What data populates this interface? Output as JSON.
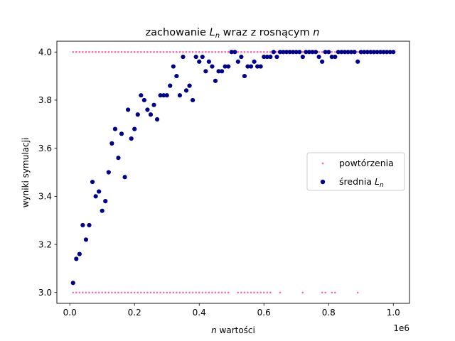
{
  "chart_data": {
    "type": "scatter",
    "title": "zachowanie L_n wraz z rosnącym n",
    "title_parts": {
      "pre": "zachowanie ",
      "var": "L",
      "sub": "n",
      "mid": " wraz z rosnącym ",
      "var2": "n"
    },
    "xlabel": "n wartości",
    "xlabel_parts": {
      "var": "n",
      "rest": " wartości"
    },
    "ylabel": "wyniki symulacji",
    "x_scale_label": "1e6",
    "xlim": [
      -40000,
      1050000
    ],
    "ylim": [
      2.955,
      4.045
    ],
    "x_ticks": [
      0,
      200000,
      400000,
      600000,
      800000,
      1000000
    ],
    "x_tick_labels": [
      "0.0",
      "0.2",
      "0.4",
      "0.6",
      "0.8",
      "1.0"
    ],
    "y_ticks": [
      3.0,
      3.2,
      3.4,
      3.6,
      3.8,
      4.0
    ],
    "y_tick_labels": [
      "3.0",
      "3.2",
      "3.4",
      "3.6",
      "3.8",
      "4.0"
    ],
    "grid": false,
    "legend_position": "center-right",
    "series": [
      {
        "name": "powtórzenia",
        "color": "#ff69b4",
        "marker": "small-dot",
        "points_top": {
          "y": 4.0,
          "x": [
            10000,
            20000,
            30000,
            40000,
            50000,
            60000,
            70000,
            80000,
            90000,
            100000,
            110000,
            120000,
            130000,
            140000,
            150000,
            160000,
            170000,
            180000,
            190000,
            200000,
            210000,
            220000,
            230000,
            240000,
            250000,
            260000,
            270000,
            280000,
            290000,
            300000,
            310000,
            320000,
            330000,
            340000,
            350000,
            360000,
            370000,
            380000,
            390000,
            400000,
            410000,
            420000,
            430000,
            440000,
            450000,
            460000,
            470000,
            480000,
            490000,
            500000,
            510000,
            520000,
            530000,
            540000,
            550000,
            560000,
            570000,
            580000,
            590000,
            600000,
            610000,
            620000,
            630000,
            640000,
            650000,
            660000,
            670000,
            680000,
            690000,
            700000,
            710000,
            720000,
            730000,
            740000,
            750000,
            760000,
            770000,
            780000,
            790000,
            800000,
            810000,
            820000,
            830000,
            840000,
            850000,
            860000,
            870000,
            880000,
            890000,
            900000,
            910000,
            920000,
            930000,
            940000,
            950000,
            960000,
            970000,
            980000,
            990000,
            1000000
          ]
        },
        "points_bottom": {
          "y": 3.0,
          "x": [
            10000,
            20000,
            30000,
            40000,
            50000,
            60000,
            70000,
            80000,
            90000,
            100000,
            110000,
            120000,
            130000,
            140000,
            150000,
            160000,
            170000,
            180000,
            190000,
            200000,
            210000,
            220000,
            230000,
            240000,
            250000,
            260000,
            270000,
            280000,
            290000,
            300000,
            310000,
            320000,
            330000,
            340000,
            350000,
            360000,
            370000,
            380000,
            390000,
            400000,
            410000,
            420000,
            430000,
            440000,
            450000,
            460000,
            470000,
            480000,
            490000,
            520000,
            530000,
            540000,
            550000,
            560000,
            570000,
            580000,
            590000,
            600000,
            610000,
            620000,
            650000,
            720000,
            780000,
            790000,
            810000,
            820000,
            890000
          ]
        }
      },
      {
        "name": "średnia L_n",
        "name_parts": {
          "pre": "średnia ",
          "var": "L",
          "sub": "n"
        },
        "color": "#00008b",
        "marker": "dot",
        "x": [
          10000,
          20000,
          30000,
          40000,
          50000,
          60000,
          70000,
          80000,
          90000,
          100000,
          110000,
          120000,
          130000,
          140000,
          150000,
          160000,
          170000,
          180000,
          190000,
          200000,
          210000,
          220000,
          230000,
          240000,
          250000,
          260000,
          270000,
          280000,
          290000,
          300000,
          310000,
          320000,
          330000,
          340000,
          350000,
          360000,
          370000,
          380000,
          390000,
          400000,
          410000,
          420000,
          430000,
          440000,
          450000,
          460000,
          470000,
          480000,
          490000,
          500000,
          510000,
          520000,
          530000,
          540000,
          550000,
          560000,
          570000,
          580000,
          590000,
          600000,
          610000,
          620000,
          630000,
          640000,
          650000,
          660000,
          670000,
          680000,
          690000,
          700000,
          710000,
          720000,
          730000,
          740000,
          750000,
          760000,
          770000,
          780000,
          790000,
          800000,
          810000,
          820000,
          830000,
          840000,
          850000,
          860000,
          870000,
          880000,
          890000,
          900000,
          910000,
          920000,
          930000,
          940000,
          950000,
          960000,
          970000,
          980000,
          990000,
          1000000
        ],
        "y": [
          3.04,
          3.14,
          3.16,
          3.28,
          3.22,
          3.28,
          3.46,
          3.4,
          3.42,
          3.34,
          3.38,
          3.5,
          3.62,
          3.68,
          3.56,
          3.66,
          3.48,
          3.76,
          3.64,
          3.68,
          3.74,
          3.82,
          3.8,
          3.76,
          3.74,
          3.78,
          3.72,
          3.82,
          3.82,
          3.82,
          3.86,
          3.94,
          3.9,
          3.82,
          3.98,
          3.84,
          3.86,
          3.8,
          3.98,
          3.96,
          3.98,
          3.92,
          3.96,
          3.94,
          3.88,
          3.92,
          3.92,
          3.94,
          3.94,
          4.0,
          4.0,
          3.96,
          3.98,
          3.9,
          3.94,
          3.94,
          3.96,
          3.94,
          3.94,
          3.98,
          3.98,
          3.98,
          4.0,
          3.98,
          4.0,
          4.0,
          4.0,
          4.0,
          4.0,
          4.0,
          4.0,
          3.98,
          4.0,
          4.0,
          4.0,
          4.0,
          3.98,
          3.96,
          4.0,
          4.0,
          3.98,
          3.98,
          4.0,
          4.0,
          4.0,
          4.0,
          4.0,
          4.0,
          3.96,
          4.0,
          4.0,
          4.0,
          4.0,
          4.0,
          4.0,
          4.0,
          4.0,
          4.0,
          4.0,
          4.0
        ]
      }
    ]
  }
}
